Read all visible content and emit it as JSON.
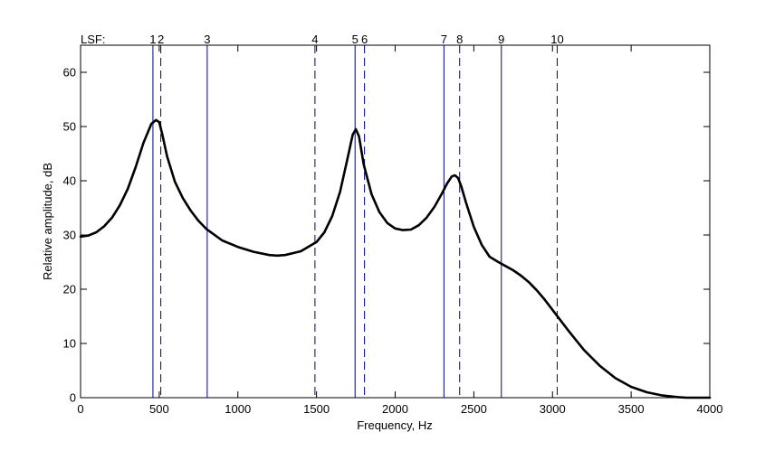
{
  "chart_data": {
    "type": "line",
    "title": "",
    "xlabel": "Frequency, Hz",
    "ylabel": "Relative amplitude, dB",
    "xlim": [
      0,
      4000
    ],
    "ylim": [
      0,
      65
    ],
    "xticks": [
      0,
      500,
      1000,
      1500,
      2000,
      2500,
      3000,
      3500,
      4000
    ],
    "yticks": [
      0,
      10,
      20,
      30,
      40,
      50,
      60
    ],
    "grid": false,
    "series": [
      {
        "color": "#000000",
        "style": "solid",
        "x": [
          0,
          50,
          100,
          150,
          200,
          250,
          300,
          350,
          400,
          450,
          480,
          500,
          520,
          550,
          600,
          650,
          700,
          750,
          800,
          900,
          1000,
          1100,
          1200,
          1250,
          1300,
          1400,
          1500,
          1550,
          1600,
          1650,
          1700,
          1730,
          1750,
          1770,
          1800,
          1850,
          1900,
          1950,
          2000,
          2050,
          2100,
          2150,
          2200,
          2250,
          2300,
          2330,
          2360,
          2380,
          2400,
          2420,
          2450,
          2500,
          2550,
          2600,
          2650,
          2700,
          2750,
          2800,
          2850,
          2900,
          2950,
          3000,
          3050,
          3100,
          3200,
          3300,
          3400,
          3500,
          3600,
          3700,
          3800,
          3850,
          3900,
          3950,
          4000
        ],
        "y": [
          29.7,
          29.9,
          30.5,
          31.6,
          33.2,
          35.5,
          38.5,
          42.5,
          47.0,
          50.5,
          51.2,
          50.8,
          48.5,
          44.5,
          39.8,
          36.8,
          34.5,
          32.6,
          31.1,
          29.0,
          27.8,
          26.9,
          26.3,
          26.2,
          26.3,
          27.0,
          28.7,
          30.5,
          33.5,
          38.0,
          44.5,
          48.5,
          49.5,
          48.2,
          43.0,
          37.5,
          34.2,
          32.2,
          31.2,
          30.9,
          31.0,
          31.8,
          33.2,
          35.2,
          37.8,
          39.5,
          40.8,
          41.0,
          40.5,
          39.0,
          36.0,
          31.5,
          28.2,
          26.0,
          25.1,
          24.3,
          23.5,
          22.5,
          21.3,
          19.8,
          18.1,
          16.2,
          14.3,
          12.4,
          8.8,
          5.9,
          3.6,
          2.0,
          1.0,
          0.4,
          0.1,
          0.0,
          0.0,
          0.0,
          0.0
        ]
      }
    ],
    "lsf_header": "LSF:",
    "lsf_lines": [
      {
        "label": "1",
        "x": 460,
        "style": "solid"
      },
      {
        "label": "2",
        "x": 510,
        "style": "dashed"
      },
      {
        "label": "3",
        "x": 805,
        "style": "solid"
      },
      {
        "label": "4",
        "x": 1490,
        "style": "dashed"
      },
      {
        "label": "5",
        "x": 1745,
        "style": "solid"
      },
      {
        "label": "6",
        "x": 1805,
        "style": "dashed"
      },
      {
        "label": "7",
        "x": 2310,
        "style": "solid"
      },
      {
        "label": "8",
        "x": 2410,
        "style": "dashed"
      },
      {
        "label": "9",
        "x": 2675,
        "style": "solid"
      },
      {
        "label": "10",
        "x": 3030,
        "style": "dashed"
      }
    ],
    "lsf_line_color": "#00008b",
    "curve_color": "#000000"
  }
}
